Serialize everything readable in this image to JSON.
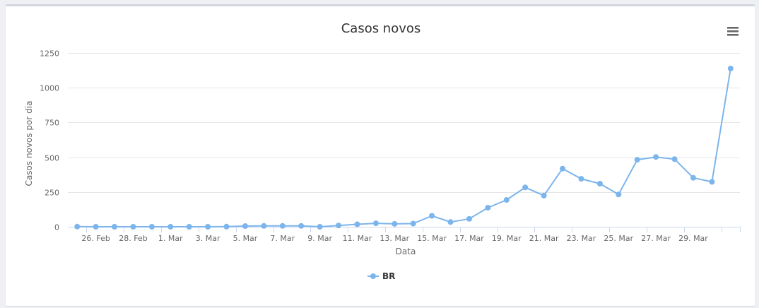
{
  "chart_data": {
    "type": "line",
    "title": "Casos novos",
    "xlabel": "Data",
    "ylabel": "Casos novos por dia",
    "ylim": [
      0,
      1250
    ],
    "yticks": [
      0,
      250,
      500,
      750,
      1000,
      1250
    ],
    "xticks": [
      "26. Feb",
      "28. Feb",
      "1. Mar",
      "3. Mar",
      "5. Mar",
      "7. Mar",
      "9. Mar",
      "11. Mar",
      "13. Mar",
      "15. Mar",
      "17. Mar",
      "19. Mar",
      "21. Mar",
      "23. Mar",
      "25. Mar",
      "27. Mar",
      "29. Mar"
    ],
    "x": [
      "2020-02-25",
      "2020-02-26",
      "2020-02-27",
      "2020-02-28",
      "2020-02-29",
      "2020-03-01",
      "2020-03-02",
      "2020-03-03",
      "2020-03-04",
      "2020-03-05",
      "2020-03-06",
      "2020-03-07",
      "2020-03-08",
      "2020-03-09",
      "2020-03-10",
      "2020-03-11",
      "2020-03-12",
      "2020-03-13",
      "2020-03-14",
      "2020-03-15",
      "2020-03-16",
      "2020-03-17",
      "2020-03-18",
      "2020-03-19",
      "2020-03-20",
      "2020-03-21",
      "2020-03-22",
      "2020-03-23",
      "2020-03-24",
      "2020-03-25",
      "2020-03-26",
      "2020-03-27",
      "2020-03-28",
      "2020-03-29",
      "2020-03-30",
      "2020-03-31"
    ],
    "grid": true,
    "legend_position": "bottom-center",
    "series": [
      {
        "name": "BR",
        "color": "#7cb5ec",
        "values": [
          1,
          0,
          0,
          0,
          0,
          0,
          0,
          0,
          1,
          5,
          6,
          6,
          6,
          0,
          9,
          18,
          25,
          21,
          23,
          79,
          34,
          57,
          137,
          193,
          283,
          224,
          418,
          345,
          310,
          232,
          482,
          502,
          487,
          352,
          323,
          1138
        ]
      }
    ]
  }
}
